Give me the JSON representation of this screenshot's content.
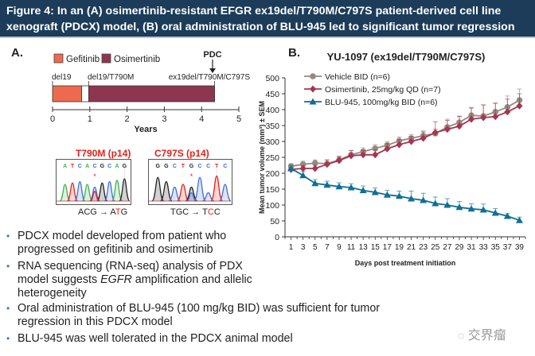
{
  "header": {
    "line1": "Figure 4: In an (A) osimertinib-resistant EFGR ex19del/T790M/C797S patient-derived cell line",
    "line2": "xenograft (PDCX) model, (B) oral administration of BLU-945 led to significant tumor regression"
  },
  "panel_a": {
    "label": "A.",
    "legend": [
      {
        "name": "Gefitinib",
        "color": "#ed6a4f"
      },
      {
        "name": "Osimertinib",
        "color": "#8e3650"
      }
    ],
    "pdc_label": "PDC",
    "mutation_labels": [
      "del19",
      "del19/T790M",
      "ex19del/T790M/C797S"
    ],
    "axis_ticks": [
      "0",
      "1",
      "2",
      "3",
      "4",
      "5"
    ],
    "axis_label": "Years",
    "treatment_years": {
      "gefitinib": [
        0,
        0.78
      ],
      "gap": [
        0.78,
        0.97
      ],
      "osimertinib": [
        0.97,
        4.35
      ]
    },
    "sequencing": [
      {
        "title": "T790M (p14)",
        "bases": [
          "A",
          "T",
          "C",
          "A",
          "C",
          "G",
          "C",
          "A",
          "G"
        ],
        "caption_prefix": "ACG → A",
        "caption_mut": "T",
        "caption_suffix": "G"
      },
      {
        "title": "C797S (p14)",
        "bases": [
          "G",
          "G",
          "C",
          "T",
          "G",
          "C",
          "C",
          "T",
          "C"
        ],
        "caption_prefix": "TGC → T",
        "caption_mut": "C",
        "caption_suffix": "C"
      }
    ]
  },
  "bullets": [
    "PDCX model developed from patient who progressed on gefitinib and osimertinib",
    "RNA sequencing (RNA-seq) analysis of PDX model suggests EGFR amplification and allelic heterogeneity",
    "Oral administration of BLU-945 (100 mg/kg BID) was sufficient for tumor regression in this PDCX model",
    "BLU-945 was well tolerated in the PDCX animal model"
  ],
  "bullet_parts": {
    "b2_pre": "RNA sequencing (RNA-seq) analysis of PDX model suggests ",
    "b2_em": "EGFR",
    "b2_post": " amplification and allelic heterogeneity"
  },
  "panel_b": {
    "label": "B."
  },
  "watermark": "交界瘤",
  "chart_data": {
    "type": "line",
    "title": "YU-1097 (ex19del/T790M/C797S)",
    "xlabel": "Days post treatment initiation",
    "ylabel": "Mean tumor volume (mm³) ± SEM",
    "ylim": [
      0,
      500
    ],
    "yticks": [
      0,
      50,
      100,
      150,
      200,
      250,
      300,
      350,
      400,
      450,
      500
    ],
    "x": [
      1,
      3,
      5,
      7,
      9,
      11,
      13,
      15,
      17,
      19,
      21,
      23,
      25,
      27,
      29,
      31,
      33,
      35,
      37,
      39
    ],
    "grid": false,
    "legend_position": "top-left",
    "series": [
      {
        "name": "Vehicle BID (n=6)",
        "color": "#958a7f",
        "marker": "circle",
        "values": [
          222,
          228,
          232,
          230,
          242,
          258,
          268,
          278,
          288,
          302,
          310,
          318,
          325,
          345,
          360,
          382,
          380,
          393,
          408,
          430
        ],
        "err": [
          8,
          10,
          10,
          12,
          12,
          14,
          12,
          12,
          12,
          12,
          12,
          15,
          14,
          25,
          20,
          25,
          35,
          28,
          35,
          35
        ]
      },
      {
        "name": "Osimertinib, 25mg/kg QD (n=7)",
        "color": "#a8344f",
        "marker": "diamond",
        "values": [
          212,
          215,
          215,
          228,
          240,
          255,
          258,
          258,
          277,
          290,
          300,
          310,
          328,
          338,
          348,
          370,
          375,
          378,
          393,
          412
        ],
        "err": [
          6,
          8,
          10,
          14,
          12,
          16,
          14,
          15,
          16,
          15,
          16,
          20,
          34,
          28,
          30,
          35,
          40,
          42,
          40,
          38
        ]
      },
      {
        "name": "BLU-945, 100mg/kg BID (n=6)",
        "color": "#0f6f94",
        "marker": "triangle",
        "values": [
          215,
          193,
          168,
          163,
          158,
          155,
          146,
          140,
          132,
          128,
          120,
          115,
          105,
          100,
          93,
          88,
          85,
          75,
          65,
          52
        ],
        "err": [
          10,
          12,
          12,
          12,
          12,
          12,
          14,
          14,
          14,
          16,
          24,
          22,
          20,
          20,
          18,
          16,
          18,
          14,
          8,
          10
        ]
      }
    ]
  }
}
